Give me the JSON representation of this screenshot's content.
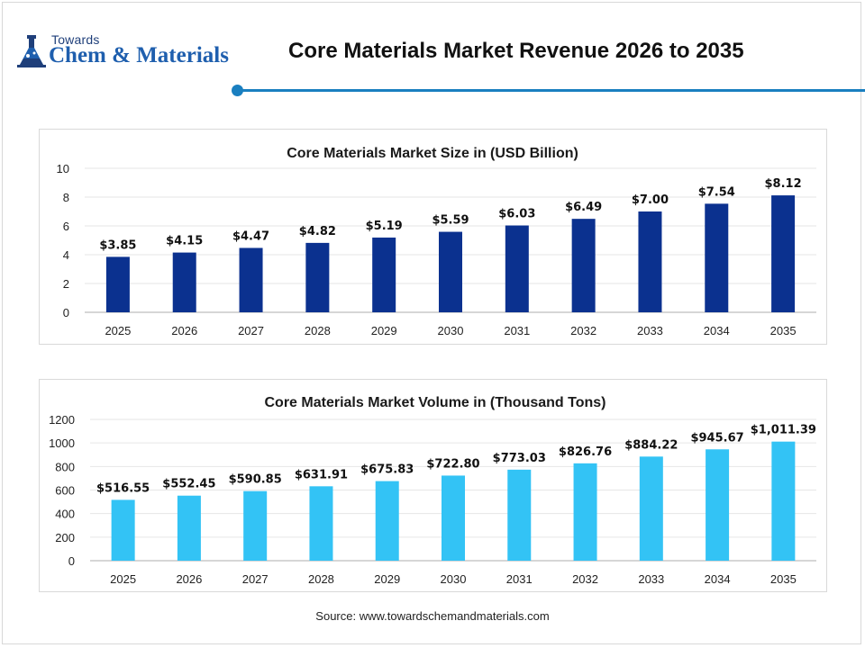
{
  "header": {
    "logo_small": "Towards",
    "logo_big": "Chem & Materials",
    "title": "Core Materials Market Revenue 2026 to 2035"
  },
  "source": "Source: www.towardschemandmaterials.com",
  "colors": {
    "accent_line": "#1a7fc0",
    "series_1": "#0b318f",
    "series_2": "#33c3f5"
  },
  "chart_data": [
    {
      "type": "bar",
      "title": "Core Materials Market Size in (USD Billion)",
      "categories": [
        "2025",
        "2026",
        "2027",
        "2028",
        "2029",
        "2030",
        "2031",
        "2032",
        "2033",
        "2034",
        "2035"
      ],
      "values": [
        3.85,
        4.15,
        4.47,
        4.82,
        5.19,
        5.59,
        6.03,
        6.49,
        7.0,
        7.54,
        8.12
      ],
      "data_labels": [
        "$3.85",
        "$4.15",
        "$4.47",
        "$4.82",
        "$5.19",
        "$5.59",
        "$6.03",
        "$6.49",
        "$7.00",
        "$7.54",
        "$8.12"
      ],
      "ylim": [
        0,
        10
      ],
      "yticks": [
        "0",
        "2",
        "4",
        "6",
        "8",
        "10"
      ],
      "ytick_values": [
        0,
        2,
        4,
        6,
        8,
        10
      ],
      "grid": true,
      "color": "#0b318f"
    },
    {
      "type": "bar",
      "title": "Core Materials Market Volume in (Thousand Tons)",
      "categories": [
        "2025",
        "2026",
        "2027",
        "2028",
        "2029",
        "2030",
        "2031",
        "2032",
        "2033",
        "2034",
        "2035"
      ],
      "values": [
        516.55,
        552.45,
        590.85,
        631.91,
        675.83,
        722.8,
        773.03,
        826.76,
        884.22,
        945.67,
        1011.39
      ],
      "data_labels": [
        "$516.55",
        "$552.45",
        "$590.85",
        "$631.91",
        "$675.83",
        "$722.80",
        "$773.03",
        "$826.76",
        "$884.22",
        "$945.67",
        "$1,011.39"
      ],
      "ylim": [
        0,
        1200
      ],
      "yticks": [
        "0",
        "200",
        "400",
        "600",
        "800",
        "1000",
        "1200"
      ],
      "ytick_values": [
        0,
        200,
        400,
        600,
        800,
        1000,
        1200
      ],
      "grid": true,
      "color": "#33c3f5"
    }
  ]
}
